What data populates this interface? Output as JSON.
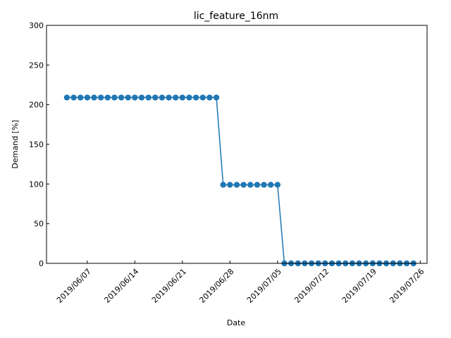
{
  "chart_data": {
    "type": "line",
    "title": "lic_feature_16nm",
    "xlabel": "Date",
    "ylabel": "Demand [%]",
    "ylim": [
      0,
      300
    ],
    "yticks": [
      0,
      50,
      100,
      150,
      200,
      250,
      300
    ],
    "xlim": [
      "2019-06-01",
      "2019-07-27"
    ],
    "xticks": [
      {
        "date": "2019-06-07",
        "label": "2019/06/07"
      },
      {
        "date": "2019-06-14",
        "label": "2019/06/14"
      },
      {
        "date": "2019-06-21",
        "label": "2019/06/21"
      },
      {
        "date": "2019-06-28",
        "label": "2019/06/28"
      },
      {
        "date": "2019-07-05",
        "label": "2019/07/05"
      },
      {
        "date": "2019-07-12",
        "label": "2019/07/12"
      },
      {
        "date": "2019-07-19",
        "label": "2019/07/19"
      },
      {
        "date": "2019-07-26",
        "label": "2019/07/26"
      }
    ],
    "grid": false,
    "color": "#1f77b4",
    "series": [
      {
        "points": [
          {
            "x": "2019-06-04",
            "y": 209
          },
          {
            "x": "2019-06-05",
            "y": 209
          },
          {
            "x": "2019-06-06",
            "y": 209
          },
          {
            "x": "2019-06-07",
            "y": 209
          },
          {
            "x": "2019-06-08",
            "y": 209
          },
          {
            "x": "2019-06-09",
            "y": 209
          },
          {
            "x": "2019-06-10",
            "y": 209
          },
          {
            "x": "2019-06-11",
            "y": 209
          },
          {
            "x": "2019-06-12",
            "y": 209
          },
          {
            "x": "2019-06-13",
            "y": 209
          },
          {
            "x": "2019-06-14",
            "y": 209
          },
          {
            "x": "2019-06-15",
            "y": 209
          },
          {
            "x": "2019-06-16",
            "y": 209
          },
          {
            "x": "2019-06-17",
            "y": 209
          },
          {
            "x": "2019-06-18",
            "y": 209
          },
          {
            "x": "2019-06-19",
            "y": 209
          },
          {
            "x": "2019-06-20",
            "y": 209
          },
          {
            "x": "2019-06-21",
            "y": 209
          },
          {
            "x": "2019-06-22",
            "y": 209
          },
          {
            "x": "2019-06-23",
            "y": 209
          },
          {
            "x": "2019-06-24",
            "y": 209
          },
          {
            "x": "2019-06-25",
            "y": 209
          },
          {
            "x": "2019-06-26",
            "y": 209
          },
          {
            "x": "2019-06-27",
            "y": 99
          },
          {
            "x": "2019-06-28",
            "y": 99
          },
          {
            "x": "2019-06-29",
            "y": 99
          },
          {
            "x": "2019-06-30",
            "y": 99
          },
          {
            "x": "2019-07-01",
            "y": 99
          },
          {
            "x": "2019-07-02",
            "y": 99
          },
          {
            "x": "2019-07-03",
            "y": 99
          },
          {
            "x": "2019-07-04",
            "y": 99
          },
          {
            "x": "2019-07-05",
            "y": 99
          },
          {
            "x": "2019-07-06",
            "y": 0
          },
          {
            "x": "2019-07-07",
            "y": 0
          },
          {
            "x": "2019-07-08",
            "y": 0
          },
          {
            "x": "2019-07-09",
            "y": 0
          },
          {
            "x": "2019-07-10",
            "y": 0
          },
          {
            "x": "2019-07-11",
            "y": 0
          },
          {
            "x": "2019-07-12",
            "y": 0
          },
          {
            "x": "2019-07-13",
            "y": 0
          },
          {
            "x": "2019-07-14",
            "y": 0
          },
          {
            "x": "2019-07-15",
            "y": 0
          },
          {
            "x": "2019-07-16",
            "y": 0
          },
          {
            "x": "2019-07-17",
            "y": 0
          },
          {
            "x": "2019-07-18",
            "y": 0
          },
          {
            "x": "2019-07-19",
            "y": 0
          },
          {
            "x": "2019-07-20",
            "y": 0
          },
          {
            "x": "2019-07-21",
            "y": 0
          },
          {
            "x": "2019-07-22",
            "y": 0
          },
          {
            "x": "2019-07-23",
            "y": 0
          },
          {
            "x": "2019-07-24",
            "y": 0
          },
          {
            "x": "2019-07-25",
            "y": 0
          }
        ]
      }
    ]
  }
}
